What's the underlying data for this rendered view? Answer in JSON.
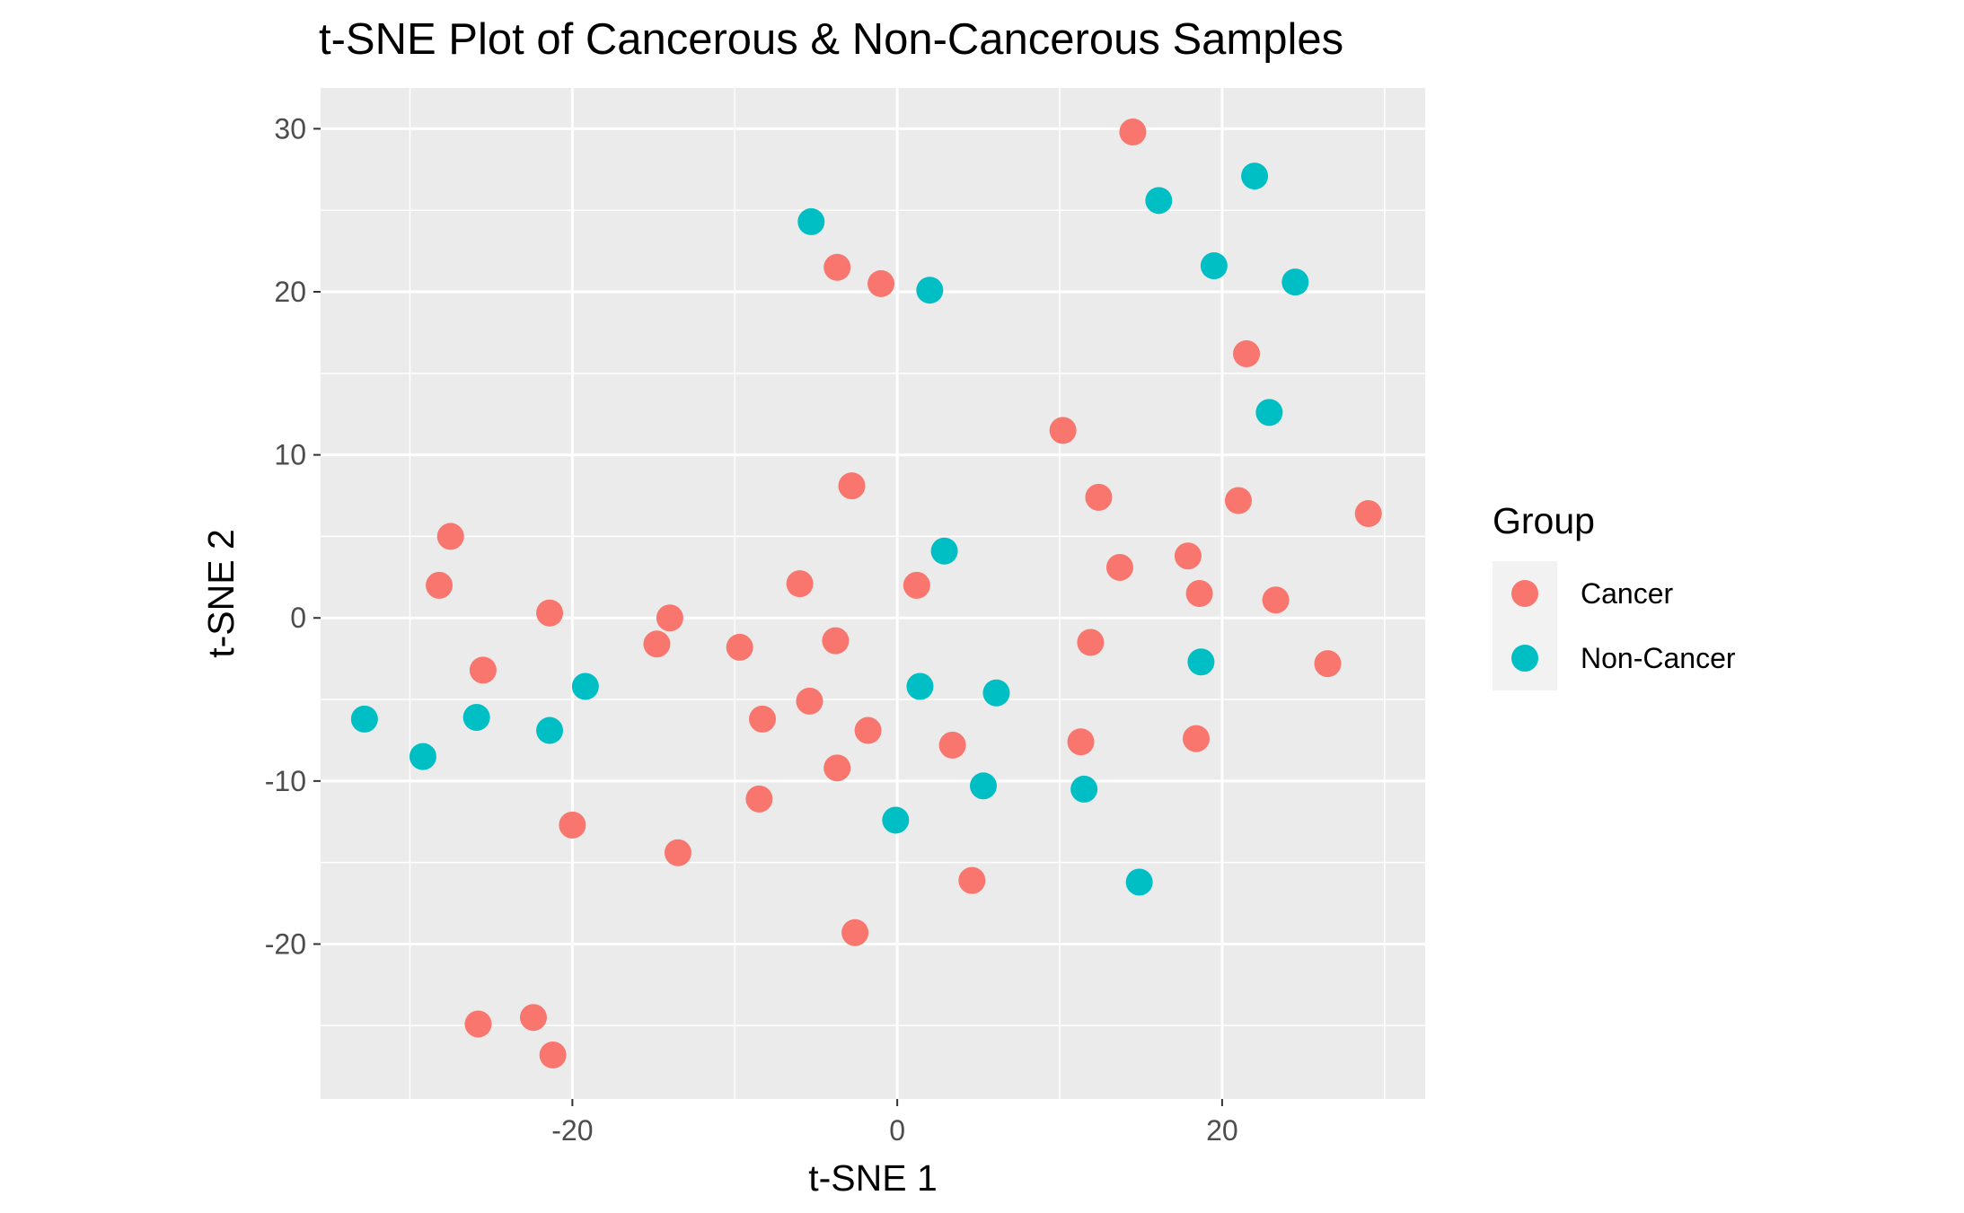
{
  "chart_data": {
    "type": "scatter",
    "title": "t-SNE Plot of Cancerous & Non-Cancerous Samples",
    "xlabel": "t-SNE 1",
    "ylabel": "t-SNE 2",
    "xlim": [
      -35.5,
      32.5
    ],
    "ylim": [
      -29.5,
      32.5
    ],
    "x_ticks": [
      -20,
      0,
      20
    ],
    "y_ticks": [
      -20,
      -10,
      0,
      10,
      20,
      30
    ],
    "x_tick_labels": [
      "-20",
      "0",
      "20"
    ],
    "y_tick_labels": [
      "-20",
      "-10",
      "0",
      "10",
      "20",
      "30"
    ],
    "grid": true,
    "legend_title": "Group",
    "legend_position": "right",
    "series": [
      {
        "name": "Cancer",
        "color": "#F8766D",
        "points": [
          [
            14.5,
            29.8
          ],
          [
            -3.7,
            21.5
          ],
          [
            -1.0,
            20.5
          ],
          [
            21.5,
            16.2
          ],
          [
            10.2,
            11.5
          ],
          [
            -2.8,
            8.1
          ],
          [
            12.4,
            7.4
          ],
          [
            21.0,
            7.2
          ],
          [
            29.0,
            6.4
          ],
          [
            -27.5,
            5.0
          ],
          [
            17.9,
            3.8
          ],
          [
            13.7,
            3.1
          ],
          [
            -28.2,
            2.0
          ],
          [
            -6.0,
            2.1
          ],
          [
            1.2,
            2.0
          ],
          [
            18.6,
            1.5
          ],
          [
            23.3,
            1.1
          ],
          [
            -21.4,
            0.3
          ],
          [
            -14.0,
            0.0
          ],
          [
            -14.8,
            -1.6
          ],
          [
            -9.7,
            -1.8
          ],
          [
            -3.8,
            -1.4
          ],
          [
            11.9,
            -1.5
          ],
          [
            -25.5,
            -3.2
          ],
          [
            26.5,
            -2.8
          ],
          [
            -5.4,
            -5.1
          ],
          [
            -8.3,
            -6.2
          ],
          [
            -1.8,
            -6.9
          ],
          [
            3.4,
            -7.8
          ],
          [
            11.3,
            -7.6
          ],
          [
            18.4,
            -7.4
          ],
          [
            -3.7,
            -9.2
          ],
          [
            -8.5,
            -11.1
          ],
          [
            -20.0,
            -12.7
          ],
          [
            -13.5,
            -14.4
          ],
          [
            4.6,
            -16.1
          ],
          [
            -2.6,
            -19.3
          ],
          [
            -25.8,
            -24.9
          ],
          [
            -22.4,
            -24.5
          ],
          [
            -21.2,
            -26.8
          ]
        ]
      },
      {
        "name": "Non-Cancer",
        "color": "#00BFC4",
        "points": [
          [
            22.0,
            27.1
          ],
          [
            16.1,
            25.6
          ],
          [
            -5.3,
            24.3
          ],
          [
            19.5,
            21.6
          ],
          [
            24.5,
            20.6
          ],
          [
            2.0,
            20.1
          ],
          [
            22.9,
            12.6
          ],
          [
            2.9,
            4.1
          ],
          [
            18.7,
            -2.7
          ],
          [
            -19.2,
            -4.2
          ],
          [
            1.4,
            -4.2
          ],
          [
            6.1,
            -4.6
          ],
          [
            -32.8,
            -6.2
          ],
          [
            -25.9,
            -6.1
          ],
          [
            -21.4,
            -6.9
          ],
          [
            -29.2,
            -8.5
          ],
          [
            5.3,
            -10.3
          ],
          [
            11.5,
            -10.5
          ],
          [
            -0.1,
            -12.4
          ],
          [
            14.9,
            -16.2
          ]
        ]
      }
    ]
  }
}
